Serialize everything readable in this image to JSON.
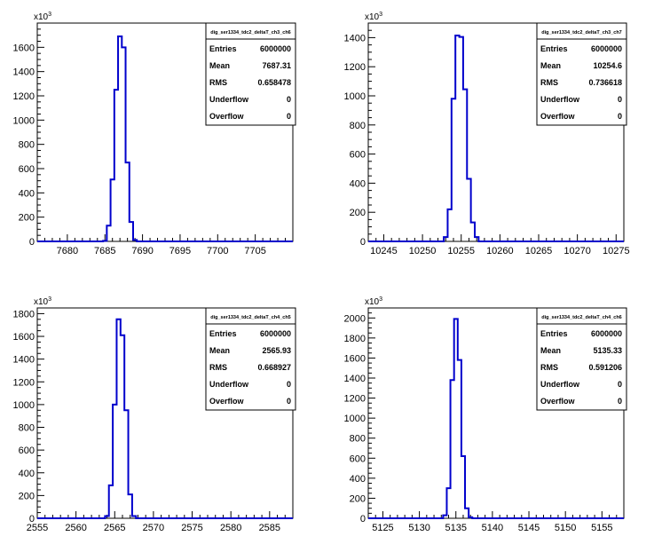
{
  "chart_data": [
    {
      "type": "bar",
      "histogram_name": "dig_ser1334_tdc2_deltaT_ch3_ch6",
      "x_range": [
        7676,
        7710
      ],
      "y_range": [
        0,
        1800
      ],
      "y_multiplier": "x10^3",
      "x_ticks": [
        7680,
        7685,
        7690,
        7695,
        7700,
        7705
      ],
      "y_ticks": [
        0,
        200,
        400,
        600,
        800,
        1000,
        1200,
        1400,
        1600
      ],
      "bins": [
        {
          "x": 7684.5,
          "y": 0
        },
        {
          "x": 7685.0,
          "y": 5
        },
        {
          "x": 7685.5,
          "y": 130
        },
        {
          "x": 7686.0,
          "y": 510
        },
        {
          "x": 7686.5,
          "y": 1250
        },
        {
          "x": 7687.0,
          "y": 1690
        },
        {
          "x": 7687.5,
          "y": 1600
        },
        {
          "x": 7688.0,
          "y": 650
        },
        {
          "x": 7688.5,
          "y": 160
        },
        {
          "x": 7689.0,
          "y": 12
        },
        {
          "x": 7689.5,
          "y": 0
        }
      ],
      "stats": {
        "entries_label": "Entries",
        "entries": "6000000",
        "mean_label": "Mean",
        "mean": "7687.31",
        "rms_label": "RMS",
        "rms": "0.658478",
        "underflow_label": "Underflow",
        "underflow": "0",
        "overflow_label": "Overflow",
        "overflow": "0"
      },
      "line_color": "#0000cc"
    },
    {
      "type": "bar",
      "histogram_name": "dig_ser1334_tdc2_deltaT_ch3_ch7",
      "x_range": [
        10243,
        10276
      ],
      "y_range": [
        0,
        1500
      ],
      "y_multiplier": "x10^3",
      "x_ticks": [
        10245,
        10250,
        10255,
        10260,
        10265,
        10270,
        10275
      ],
      "y_ticks": [
        0,
        200,
        400,
        600,
        800,
        1000,
        1200,
        1400
      ],
      "bins": [
        {
          "x": 10252.5,
          "y": 0
        },
        {
          "x": 10253.0,
          "y": 30
        },
        {
          "x": 10253.5,
          "y": 220
        },
        {
          "x": 10254.0,
          "y": 980
        },
        {
          "x": 10254.5,
          "y": 1415
        },
        {
          "x": 10255.0,
          "y": 1405
        },
        {
          "x": 10255.5,
          "y": 1045
        },
        {
          "x": 10256.0,
          "y": 430
        },
        {
          "x": 10256.5,
          "y": 130
        },
        {
          "x": 10257.0,
          "y": 30
        },
        {
          "x": 10257.5,
          "y": 0
        }
      ],
      "stats": {
        "entries_label": "Entries",
        "entries": "6000000",
        "mean_label": "Mean",
        "mean": "10254.6",
        "rms_label": "RMS",
        "rms": "0.736618",
        "underflow_label": "Underflow",
        "underflow": "0",
        "overflow_label": "Overflow",
        "overflow": "0"
      },
      "line_color": "#0000cc"
    },
    {
      "type": "bar",
      "histogram_name": "dig_ser1334_tdc2_deltaT_ch4_ch5",
      "x_range": [
        2555,
        2588
      ],
      "y_range": [
        0,
        1850
      ],
      "y_multiplier": "x10^3",
      "x_ticks": [
        2555,
        2560,
        2565,
        2570,
        2575,
        2580,
        2585
      ],
      "y_ticks": [
        0,
        200,
        400,
        600,
        800,
        1000,
        1200,
        1400,
        1600,
        1800
      ],
      "bins": [
        {
          "x": 2563.5,
          "y": 0
        },
        {
          "x": 2564.0,
          "y": 20
        },
        {
          "x": 2564.5,
          "y": 290
        },
        {
          "x": 2565.0,
          "y": 1000
        },
        {
          "x": 2565.5,
          "y": 1750
        },
        {
          "x": 2566.0,
          "y": 1610
        },
        {
          "x": 2566.5,
          "y": 950
        },
        {
          "x": 2567.0,
          "y": 210
        },
        {
          "x": 2567.5,
          "y": 20
        },
        {
          "x": 2568.0,
          "y": 0
        }
      ],
      "stats": {
        "entries_label": "Entries",
        "entries": "6000000",
        "mean_label": "Mean",
        "mean": "2565.93",
        "rms_label": "RMS",
        "rms": "0.668927",
        "underflow_label": "Underflow",
        "underflow": "0",
        "overflow_label": "Overflow",
        "overflow": "0"
      },
      "line_color": "#0000cc"
    },
    {
      "type": "bar",
      "histogram_name": "dig_ser1334_tdc2_deltaT_ch4_ch6",
      "x_range": [
        5123,
        5158
      ],
      "y_range": [
        0,
        2100
      ],
      "y_multiplier": "x10^3",
      "x_ticks": [
        5125,
        5130,
        5135,
        5140,
        5145,
        5150,
        5155
      ],
      "y_ticks": [
        0,
        200,
        400,
        600,
        800,
        1000,
        1200,
        1400,
        1600,
        1800,
        2000
      ],
      "bins": [
        {
          "x": 5133.0,
          "y": 0
        },
        {
          "x": 5133.5,
          "y": 30
        },
        {
          "x": 5134.0,
          "y": 300
        },
        {
          "x": 5134.5,
          "y": 1380
        },
        {
          "x": 5135.0,
          "y": 1990
        },
        {
          "x": 5135.5,
          "y": 1580
        },
        {
          "x": 5136.0,
          "y": 620
        },
        {
          "x": 5136.5,
          "y": 100
        },
        {
          "x": 5137.0,
          "y": 10
        },
        {
          "x": 5137.5,
          "y": 0
        }
      ],
      "stats": {
        "entries_label": "Entries",
        "entries": "6000000",
        "mean_label": "Mean",
        "mean": "5135.33",
        "rms_label": "RMS",
        "rms": "0.591206",
        "underflow_label": "Underflow",
        "underflow": "0",
        "overflow_label": "Overflow",
        "overflow": "0"
      },
      "line_color": "#0000cc"
    }
  ]
}
